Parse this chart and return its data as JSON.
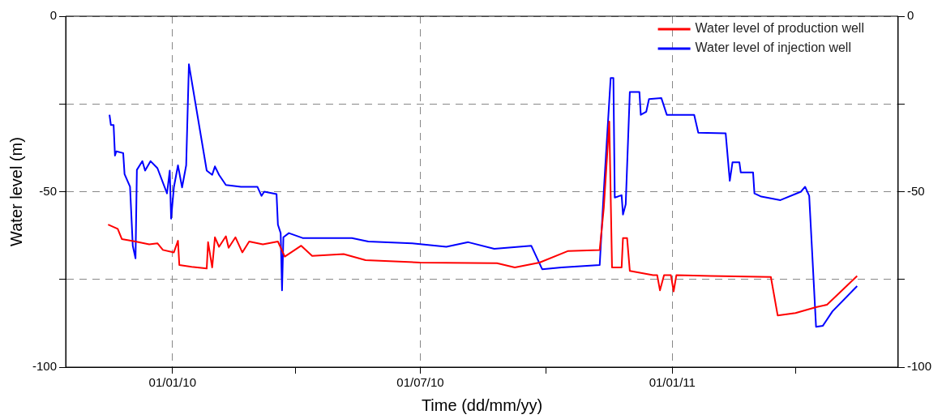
{
  "chart_data": {
    "type": "line",
    "xlabel": "Time (dd/mm/yy)",
    "ylabel": "Water level (m)",
    "xlim": [
      "2009-10-15",
      "2011-06-15"
    ],
    "xticks": [
      {
        "value": "2010-01-01",
        "label": "01/01/10"
      },
      {
        "value": "2010-04-01",
        "label": null
      },
      {
        "value": "2010-07-01",
        "label": "01/07/10"
      },
      {
        "value": "2010-10-01",
        "label": null
      },
      {
        "value": "2011-01-01",
        "label": "01/01/11"
      },
      {
        "value": "2011-04-01",
        "label": null
      }
    ],
    "ylim": [
      -100,
      0
    ],
    "yticks": [
      0,
      {
        "value": -25,
        "label": null
      },
      -50,
      {
        "value": -75,
        "label": null
      },
      -100
    ],
    "y2lim": [
      -100,
      0
    ],
    "y2ticks": [
      0,
      {
        "value": -25,
        "label": null
      },
      -50,
      {
        "value": -75,
        "label": null
      },
      -100
    ],
    "grid": true,
    "legend": "top right",
    "marker": "none",
    "line_style": "solid",
    "series": [
      {
        "name": "Water level of production well",
        "color": "#ff0000",
        "x": [
          "2009-11-15",
          "2009-11-22",
          "2009-11-25",
          "2009-12-05",
          "2009-12-15",
          "2009-12-21",
          "2009-12-25",
          "2010-01-02",
          "2010-01-05",
          "2010-01-06",
          "2010-01-15",
          "2010-01-26",
          "2010-01-27",
          "2010-01-30",
          "2010-02-01",
          "2010-02-04",
          "2010-02-09",
          "2010-02-11",
          "2010-02-16",
          "2010-02-21",
          "2010-02-26",
          "2010-03-08",
          "2010-03-19",
          "2010-03-24",
          "2010-04-05",
          "2010-04-13",
          "2010-05-06",
          "2010-05-22",
          "2010-07-01",
          "2010-08-26",
          "2010-09-08",
          "2010-09-26",
          "2010-10-17",
          "2010-11-09",
          "2010-11-12",
          "2010-11-16",
          "2010-11-18",
          "2010-11-25",
          "2010-11-26",
          "2010-11-29",
          "2010-12-01",
          "2010-12-18",
          "2010-12-21",
          "2010-12-23",
          "2010-12-26",
          "2010-12-31",
          "2011-01-02",
          "2011-01-04",
          "2011-01-29",
          "2011-03-14",
          "2011-03-19",
          "2011-04-01",
          "2011-04-16",
          "2011-04-24",
          "2011-05-16"
        ],
        "values": [
          -59.4,
          -60.6,
          -63.5,
          -64.2,
          -65,
          -64.7,
          -66.6,
          -67.3,
          -64,
          -70.9,
          -71.4,
          -71.9,
          -64.4,
          -71.6,
          -63,
          -65.7,
          -62.7,
          -66,
          -63,
          -67.3,
          -64.2,
          -65,
          -64.2,
          -68.5,
          -65.4,
          -68.3,
          -67.8,
          -69.5,
          -70.2,
          -70.4,
          -71.6,
          -70.2,
          -66.9,
          -66.6,
          -54.6,
          -30,
          -71.6,
          -71.6,
          -63.2,
          -63.2,
          -72.6,
          -73.8,
          -73.8,
          -78.1,
          -73.8,
          -73.8,
          -78.4,
          -73.8,
          -74,
          -74.3,
          -85.3,
          -84.6,
          -82.9,
          -82.2,
          -74
        ]
      },
      {
        "name": "Water level of injection well",
        "color": "#0000ff",
        "x": [
          "2009-11-16",
          "2009-11-17",
          "2009-11-19",
          "2009-11-20",
          "2009-11-21",
          "2009-11-26",
          "2009-11-27",
          "2009-12-01",
          "2009-12-03",
          "2009-12-05",
          "2009-12-06",
          "2009-12-10",
          "2009-12-12",
          "2009-12-16",
          "2009-12-21",
          "2009-12-28",
          "2009-12-30",
          "2009-12-31",
          "2010-01-02",
          "2010-01-05",
          "2010-01-08",
          "2010-01-11",
          "2010-01-13",
          "2010-01-26",
          "2010-01-30",
          "2010-02-01",
          "2010-02-04",
          "2010-02-09",
          "2010-02-20",
          "2010-03-04",
          "2010-03-07",
          "2010-03-09",
          "2010-03-18",
          "2010-03-19",
          "2010-03-21",
          "2010-03-22",
          "2010-03-23",
          "2010-03-27",
          "2010-04-06",
          "2010-05-12",
          "2010-05-24",
          "2010-06-25",
          "2010-07-20",
          "2010-08-05",
          "2010-08-24",
          "2010-09-20",
          "2010-09-28",
          "2010-10-12",
          "2010-11-09",
          "2010-11-12",
          "2010-11-17",
          "2010-11-19",
          "2010-11-20",
          "2010-11-25",
          "2010-11-26",
          "2010-11-28",
          "2010-12-01",
          "2010-12-08",
          "2010-12-09",
          "2010-12-13",
          "2010-12-15",
          "2010-12-24",
          "2010-12-28",
          "2011-01-17",
          "2011-01-20",
          "2011-02-09",
          "2011-02-12",
          "2011-02-14",
          "2011-02-19",
          "2011-02-20",
          "2011-03-01",
          "2011-03-02",
          "2011-03-07",
          "2011-03-21",
          "2011-04-05",
          "2011-04-08",
          "2011-04-11",
          "2011-04-16",
          "2011-04-21",
          "2011-04-28",
          "2011-05-16"
        ],
        "values": [
          -28.1,
          -31,
          -31,
          -39.7,
          -38.5,
          -39,
          -45,
          -48.6,
          -65.4,
          -69,
          -43.8,
          -41.3,
          -44,
          -41.3,
          -43.3,
          -50.5,
          -44,
          -57.7,
          -48.8,
          -42.5,
          -48.8,
          -42.5,
          -13.7,
          -44,
          -45.2,
          -42.8,
          -45.2,
          -48.1,
          -48.6,
          -48.6,
          -51.2,
          -50,
          -50.7,
          -59.4,
          -61.8,
          -78.1,
          -63,
          -61.8,
          -63.2,
          -63.2,
          -64.2,
          -64.7,
          -65.7,
          -64.4,
          -66.3,
          -65.4,
          -72.1,
          -71.6,
          -70.9,
          -49.8,
          -17.6,
          -17.6,
          -51.7,
          -51,
          -56.5,
          -53.6,
          -21.6,
          -21.6,
          -28.1,
          -27.2,
          -23.6,
          -23.3,
          -28.1,
          -28.1,
          -33.2,
          -33.4,
          -46.9,
          -41.6,
          -41.6,
          -44.5,
          -44.5,
          -50.5,
          -51.4,
          -52.4,
          -50,
          -48.6,
          -51.2,
          -88.5,
          -88.2,
          -84.1,
          -76.9
        ]
      }
    ]
  }
}
